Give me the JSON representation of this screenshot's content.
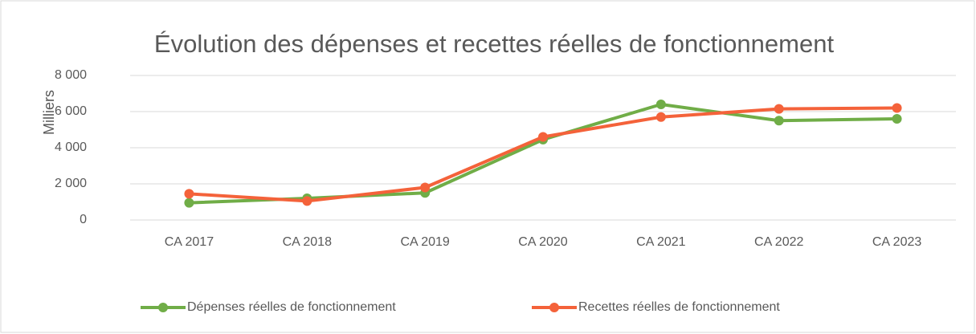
{
  "chart_data": {
    "type": "line",
    "title": "Évolution des dépenses et recettes réelles de fonctionnement",
    "y_label": "Milliers",
    "categories": [
      "CA 2017",
      "CA 2018",
      "CA 2019",
      "CA 2020",
      "CA 2021",
      "CA 2022",
      "CA 2023"
    ],
    "series": [
      {
        "name": "Dépenses réelles de fonctionnement",
        "color": "#70ad47",
        "values": [
          950,
          1200,
          1500,
          4450,
          6400,
          5500,
          5600
        ]
      },
      {
        "name": "Recettes réelles de fonctionnement",
        "color": "#f4623a",
        "values": [
          1450,
          1050,
          1800,
          4600,
          5700,
          6150,
          6200
        ]
      }
    ],
    "ylim": [
      0,
      8000
    ],
    "yticks": [
      0,
      {
        "value": 2000,
        "label": "2 000"
      },
      {
        "value": 4000,
        "label": "4 000"
      },
      {
        "value": 6000,
        "label": "6 000"
      },
      {
        "value": 8000,
        "label": "8 000"
      }
    ],
    "grid": true,
    "legend": "bottom"
  }
}
